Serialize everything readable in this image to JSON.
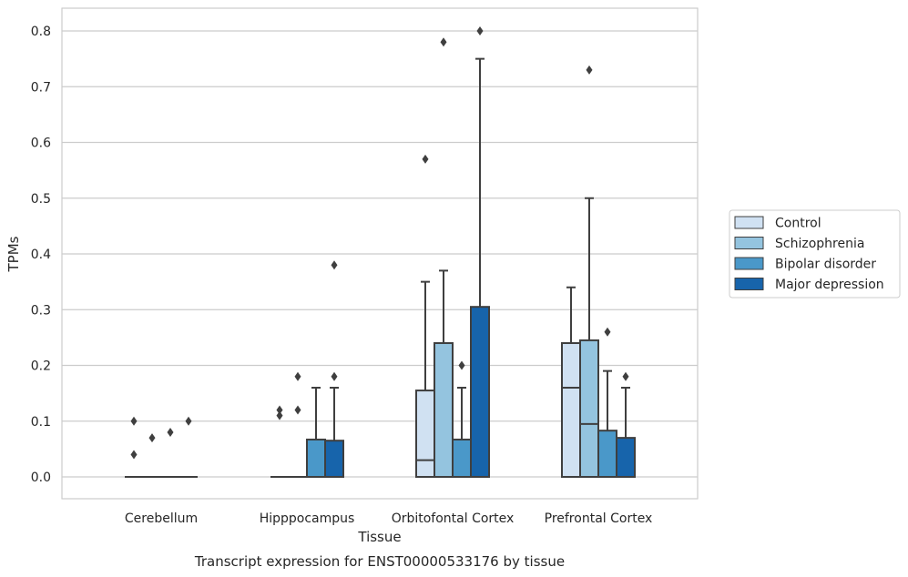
{
  "chart_data": {
    "type": "box",
    "caption": "Transcript expression for ENST00000533176 by tissue",
    "xlabel": "Tissue",
    "ylabel": "TPMs",
    "ylim": [
      -0.04,
      0.84
    ],
    "yticks": [
      0.0,
      0.1,
      0.2,
      0.3,
      0.4,
      0.5,
      0.6,
      0.7,
      0.8
    ],
    "ytick_labels": [
      "0.0",
      "0.1",
      "0.2",
      "0.3",
      "0.4",
      "0.5",
      "0.6",
      "0.7",
      "0.8"
    ],
    "grid": true,
    "legend_position": "right",
    "categories": [
      "Cerebellum",
      "Hipppocampus",
      "Orbitofontal Cortex",
      "Prefrontal Cortex"
    ],
    "series": [
      {
        "name": "Control",
        "color": "#d0e1f2",
        "boxes": [
          {
            "q1": 0,
            "median": 0,
            "q3": 0,
            "whisker_low": 0,
            "whisker_high": 0,
            "outliers": [
              0.04,
              0.1
            ]
          },
          {
            "q1": 0,
            "median": 0,
            "q3": 0,
            "whisker_low": 0,
            "whisker_high": 0,
            "outliers": [
              0.11,
              0.12
            ]
          },
          {
            "q1": 0,
            "median": 0.03,
            "q3": 0.155,
            "whisker_low": 0,
            "whisker_high": 0.35,
            "outliers": [
              0.57
            ]
          },
          {
            "q1": 0,
            "median": 0.16,
            "q3": 0.24,
            "whisker_low": 0,
            "whisker_high": 0.34,
            "outliers": []
          }
        ]
      },
      {
        "name": "Schizophrenia",
        "color": "#94c4df",
        "boxes": [
          {
            "q1": 0,
            "median": 0,
            "q3": 0,
            "whisker_low": 0,
            "whisker_high": 0,
            "outliers": [
              0.07
            ]
          },
          {
            "q1": 0,
            "median": 0,
            "q3": 0,
            "whisker_low": 0,
            "whisker_high": 0,
            "outliers": [
              0.12,
              0.18
            ]
          },
          {
            "q1": 0,
            "median": 0,
            "q3": 0.24,
            "whisker_low": 0,
            "whisker_high": 0.37,
            "outliers": [
              0.78
            ]
          },
          {
            "q1": 0,
            "median": 0.095,
            "q3": 0.245,
            "whisker_low": 0,
            "whisker_high": 0.5,
            "outliers": [
              0.73
            ]
          }
        ]
      },
      {
        "name": "Bipolar disorder",
        "color": "#4a98c9",
        "boxes": [
          {
            "q1": 0,
            "median": 0,
            "q3": 0,
            "whisker_low": 0,
            "whisker_high": 0,
            "outliers": [
              0.08
            ]
          },
          {
            "q1": 0,
            "median": 0,
            "q3": 0.067,
            "whisker_low": 0,
            "whisker_high": 0.16,
            "outliers": []
          },
          {
            "q1": 0,
            "median": 0,
            "q3": 0.067,
            "whisker_low": 0,
            "whisker_high": 0.16,
            "outliers": [
              0.2
            ]
          },
          {
            "q1": 0,
            "median": 0,
            "q3": 0.083,
            "whisker_low": 0,
            "whisker_high": 0.19,
            "outliers": [
              0.26
            ]
          }
        ]
      },
      {
        "name": "Major depression",
        "color": "#1764ab",
        "boxes": [
          {
            "q1": 0,
            "median": 0,
            "q3": 0,
            "whisker_low": 0,
            "whisker_high": 0,
            "outliers": [
              0.1
            ]
          },
          {
            "q1": 0,
            "median": 0,
            "q3": 0.065,
            "whisker_low": 0,
            "whisker_high": 0.16,
            "outliers": [
              0.18,
              0.38
            ]
          },
          {
            "q1": 0,
            "median": 0,
            "q3": 0.305,
            "whisker_low": 0,
            "whisker_high": 0.75,
            "outliers": [
              0.8
            ]
          },
          {
            "q1": 0,
            "median": 0,
            "q3": 0.07,
            "whisker_low": 0,
            "whisker_high": 0.16,
            "outliers": [
              0.18
            ]
          }
        ]
      }
    ]
  }
}
